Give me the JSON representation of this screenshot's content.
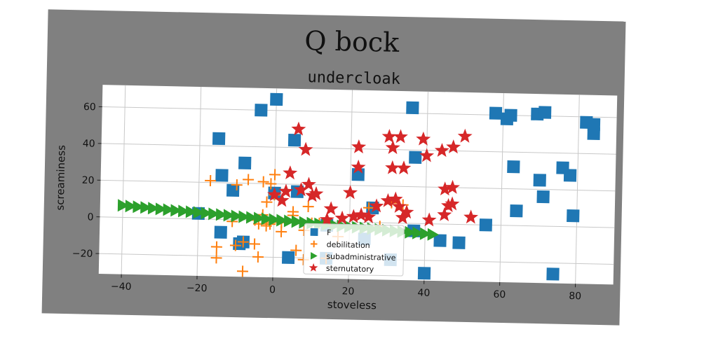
{
  "chart_data": {
    "type": "scatter",
    "suptitle": "Q bock",
    "title": "undercloak",
    "xlabel": "stoveless",
    "ylabel": "screaminess",
    "xlim": [
      -46,
      90
    ],
    "ylim": [
      -31,
      72
    ],
    "xticks": [
      -40,
      -20,
      0,
      20,
      40,
      60,
      80
    ],
    "yticks": [
      -20,
      0,
      20,
      40,
      60
    ],
    "grid": true,
    "legend_position": "lower-center",
    "series": [
      {
        "name": "F",
        "marker": "square",
        "color": "#1f77b4",
        "points": [
          [
            0,
            66
          ],
          [
            -4,
            60
          ],
          [
            -15,
            44
          ],
          [
            5,
            44
          ],
          [
            -8,
            31
          ],
          [
            -14,
            24
          ],
          [
            -11,
            16
          ],
          [
            0,
            15
          ],
          [
            6,
            16
          ],
          [
            22,
            26
          ],
          [
            26,
            8
          ],
          [
            37,
            36
          ],
          [
            36,
            63
          ],
          [
            58,
            61
          ],
          [
            61,
            58
          ],
          [
            62,
            60
          ],
          [
            69,
            61
          ],
          [
            71,
            62
          ],
          [
            63,
            32
          ],
          [
            70,
            25
          ],
          [
            71,
            16
          ],
          [
            64,
            8
          ],
          [
            56,
            0
          ],
          [
            76,
            32
          ],
          [
            78,
            28
          ],
          [
            79,
            6
          ],
          [
            82,
            57
          ],
          [
            84,
            56
          ],
          [
            84,
            51
          ],
          [
            -20,
            3
          ],
          [
            -14,
            -7
          ],
          [
            -8,
            -12
          ],
          [
            -9,
            -13
          ],
          [
            14,
            -2
          ],
          [
            24,
            -9
          ],
          [
            31,
            -20
          ],
          [
            37,
            -4
          ],
          [
            44,
            -9
          ],
          [
            49,
            -10
          ],
          [
            40,
            -27
          ],
          [
            74,
            -26
          ],
          [
            14,
            -20
          ],
          [
            4,
            -20
          ]
        ]
      },
      {
        "name": "debilitation",
        "marker": "plus",
        "color": "#ff7f0e",
        "points": [
          [
            -17,
            21
          ],
          [
            -10,
            19
          ],
          [
            -7,
            22
          ],
          [
            -3,
            21
          ],
          [
            -1,
            20
          ],
          [
            0,
            25
          ],
          [
            -2,
            10
          ],
          [
            0,
            14
          ],
          [
            5,
            5
          ],
          [
            -5,
            0
          ],
          [
            -1,
            -2
          ],
          [
            2,
            -6
          ],
          [
            5,
            3
          ],
          [
            8,
            -5
          ],
          [
            -15,
            -15
          ],
          [
            -10,
            -14
          ],
          [
            -8,
            -12
          ],
          [
            -5,
            -13
          ],
          [
            -4,
            -20
          ],
          [
            -2,
            -3
          ],
          [
            -8,
            -28
          ],
          [
            -15,
            -21
          ],
          [
            6,
            -16
          ],
          [
            8,
            -21
          ],
          [
            14,
            -20
          ],
          [
            17,
            -8
          ],
          [
            25,
            8
          ],
          [
            34,
            10
          ],
          [
            31,
            11
          ],
          [
            28,
            -2
          ],
          [
            -11,
            -1
          ],
          [
            2,
            -1
          ],
          [
            -1,
            -1
          ],
          [
            10,
            -1
          ],
          [
            12,
            -1
          ],
          [
            -3,
            3
          ],
          [
            -4,
            -2
          ],
          [
            9,
            8
          ]
        ]
      },
      {
        "name": "subadministrative",
        "marker": "triangle-right",
        "color": "#2ca02c",
        "points": [
          [
            -40,
            6.5
          ],
          [
            -38,
            6.2
          ],
          [
            -36,
            5.9
          ],
          [
            -34,
            5.6
          ],
          [
            -32,
            5.3
          ],
          [
            -30,
            5.0
          ],
          [
            -28,
            4.7
          ],
          [
            -26,
            4.4
          ],
          [
            -24,
            4.1
          ],
          [
            -22,
            3.8
          ],
          [
            -20,
            3.5
          ],
          [
            -18,
            3.2
          ],
          [
            -16,
            2.9
          ],
          [
            -14,
            2.6
          ],
          [
            -12,
            2.3
          ],
          [
            -10,
            2.0
          ],
          [
            -8,
            1.7
          ],
          [
            -6,
            1.4
          ],
          [
            -4,
            1.1
          ],
          [
            -2,
            0.8
          ],
          [
            0,
            0.5
          ],
          [
            2,
            0.2
          ],
          [
            4,
            -0.1
          ],
          [
            6,
            -0.4
          ],
          [
            8,
            -0.7
          ],
          [
            10,
            -1.0
          ],
          [
            12,
            -1.3
          ],
          [
            14,
            -1.6
          ],
          [
            16,
            -1.9
          ],
          [
            18,
            -2.2
          ],
          [
            20,
            -2.5
          ],
          [
            22,
            -2.8
          ],
          [
            24,
            -3.1
          ],
          [
            26,
            -3.4
          ],
          [
            28,
            -3.7
          ],
          [
            30,
            -4.0
          ],
          [
            32,
            -4.3
          ],
          [
            34,
            -4.6
          ],
          [
            36,
            -4.9
          ],
          [
            38,
            -5.2
          ],
          [
            40,
            -5.5
          ],
          [
            42,
            -5.8
          ]
        ]
      },
      {
        "name": "sternutatory",
        "marker": "star",
        "color": "#d62728",
        "points": [
          [
            6,
            50
          ],
          [
            8,
            39
          ],
          [
            4,
            26
          ],
          [
            9,
            20
          ],
          [
            7,
            17
          ],
          [
            10,
            14
          ],
          [
            11,
            15
          ],
          [
            0,
            14
          ],
          [
            2,
            11
          ],
          [
            3,
            16
          ],
          [
            22,
            41
          ],
          [
            22,
            30
          ],
          [
            30,
            47
          ],
          [
            33,
            47
          ],
          [
            31,
            41
          ],
          [
            39,
            46
          ],
          [
            31,
            30
          ],
          [
            34,
            30
          ],
          [
            44,
            40
          ],
          [
            47,
            42
          ],
          [
            50,
            48
          ],
          [
            40,
            37
          ],
          [
            20,
            16
          ],
          [
            27,
            9
          ],
          [
            32,
            13
          ],
          [
            33,
            9
          ],
          [
            34,
            3
          ],
          [
            30,
            12
          ],
          [
            35,
            6
          ],
          [
            45,
            19
          ],
          [
            47,
            20
          ],
          [
            47,
            11
          ],
          [
            45,
            5
          ],
          [
            46,
            10
          ],
          [
            41,
            2
          ],
          [
            52,
            4
          ],
          [
            23,
            4
          ],
          [
            25,
            3
          ],
          [
            18,
            2
          ],
          [
            14,
            1
          ],
          [
            15,
            7
          ],
          [
            21,
            3
          ]
        ]
      }
    ]
  }
}
